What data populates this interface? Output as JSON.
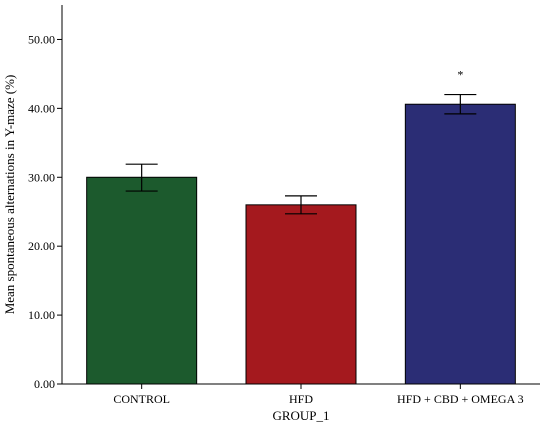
{
  "chart_data": {
    "type": "bar",
    "categories": [
      "CONTROL",
      "HFD",
      "HFD + CBD + OMEGA 3"
    ],
    "values": [
      30.0,
      26.0,
      40.6
    ],
    "error_low": [
      28.0,
      24.7,
      39.2
    ],
    "error_high": [
      31.9,
      27.3,
      42.0
    ],
    "colors": [
      "#1c5a2d",
      "#a4191e",
      "#2b2d75"
    ],
    "xlabel": "GROUP_1",
    "ylabel": "Mean spontaneous alternations in Y-maze (%)",
    "ylim": [
      0,
      55
    ],
    "yticks": [
      0,
      10,
      20,
      30,
      40,
      50
    ],
    "ytick_labels": [
      "0.00",
      "10.00",
      "20.00",
      "30.00",
      "40.00",
      "50.00"
    ],
    "annotations": [
      "",
      "",
      "*"
    ],
    "grid": false
  }
}
